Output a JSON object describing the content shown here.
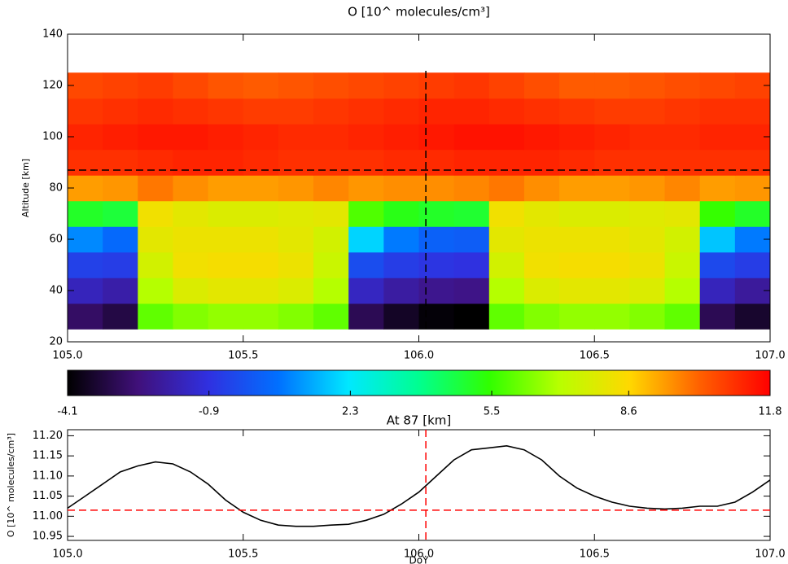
{
  "chart_data": [
    {
      "type": "heatmap",
      "title": "O [10^ molecules/cm³]",
      "ylabel": "Altitude [km]",
      "x": [
        105.05,
        105.15,
        105.25,
        105.35,
        105.45,
        105.55,
        105.65,
        105.75,
        105.85,
        105.95,
        106.05,
        106.15,
        106.25,
        106.35,
        106.45,
        106.55,
        106.65,
        106.75,
        106.85,
        106.95
      ],
      "y": [
        30,
        40,
        50,
        60,
        70,
        80,
        90,
        100,
        110,
        120
      ],
      "z": [
        [
          -2.8,
          -3.2,
          6.0,
          6.4,
          6.6,
          6.6,
          6.4,
          6.0,
          -3.0,
          -3.6,
          -4.0,
          -4.1,
          6.0,
          6.4,
          6.6,
          6.6,
          6.4,
          6.0,
          -3.0,
          -3.5
        ],
        [
          -1.5,
          -1.8,
          7.0,
          7.8,
          8.0,
          8.0,
          7.8,
          7.0,
          -1.4,
          -1.9,
          -2.2,
          -2.3,
          7.0,
          7.8,
          8.0,
          8.0,
          7.8,
          7.0,
          -1.5,
          -2.0
        ],
        [
          -0.5,
          -0.6,
          7.6,
          8.3,
          8.4,
          8.4,
          8.2,
          7.4,
          -0.2,
          -0.6,
          -0.8,
          -0.9,
          7.6,
          8.3,
          8.4,
          8.4,
          8.2,
          7.4,
          -0.3,
          -0.6
        ],
        [
          1.0,
          0.5,
          8.0,
          8.2,
          8.2,
          8.2,
          8.0,
          7.6,
          2.0,
          0.8,
          0.3,
          0.2,
          8.0,
          8.2,
          8.2,
          8.2,
          8.0,
          7.6,
          1.8,
          0.8
        ],
        [
          5.0,
          4.8,
          8.3,
          8.0,
          7.8,
          7.8,
          7.9,
          8.0,
          5.8,
          5.2,
          5.0,
          4.9,
          8.3,
          8.0,
          7.8,
          7.8,
          7.9,
          8.0,
          5.5,
          5.0
        ],
        [
          9.4,
          9.5,
          9.9,
          9.6,
          9.4,
          9.4,
          9.5,
          9.7,
          9.5,
          9.6,
          9.6,
          9.7,
          9.9,
          9.6,
          9.4,
          9.4,
          9.5,
          9.7,
          9.4,
          9.5
        ],
        [
          11.0,
          11.0,
          11.1,
          11.2,
          11.2,
          11.1,
          11.0,
          11.0,
          11.0,
          11.1,
          11.1,
          11.2,
          11.2,
          11.2,
          11.1,
          11.0,
          11.0,
          11.0,
          11.0,
          11.0
        ],
        [
          11.2,
          11.3,
          11.4,
          11.4,
          11.3,
          11.2,
          11.1,
          11.1,
          11.2,
          11.3,
          11.4,
          11.5,
          11.5,
          11.4,
          11.3,
          11.2,
          11.1,
          11.1,
          11.2,
          11.2
        ],
        [
          10.9,
          11.0,
          11.1,
          11.0,
          10.9,
          10.8,
          10.8,
          10.9,
          11.0,
          11.1,
          11.2,
          11.2,
          11.1,
          11.0,
          10.9,
          10.8,
          10.8,
          10.9,
          11.0,
          11.0
        ],
        [
          10.6,
          10.7,
          10.8,
          10.6,
          10.4,
          10.3,
          10.4,
          10.5,
          10.6,
          10.7,
          10.8,
          10.9,
          10.7,
          10.5,
          10.3,
          10.3,
          10.4,
          10.5,
          10.6,
          10.7
        ]
      ],
      "xlim": [
        105,
        107
      ],
      "ylim": [
        20,
        140
      ],
      "xticks": [
        {
          "value": 105,
          "label": "105.0"
        },
        105.5,
        {
          "value": 106,
          "label": "106.0"
        },
        106.5,
        {
          "value": 107,
          "label": "107.0"
        }
      ],
      "yticks": [
        20,
        40,
        60,
        80,
        100,
        120,
        140
      ],
      "colorbar": {
        "lim": [
          -4.1,
          11.8
        ],
        "ticks": [
          -4.1,
          -0.9,
          2.3,
          5.5,
          8.6,
          11.8
        ],
        "colors": [
          "#000000",
          "#40107a",
          "#3030e0",
          "#0070ff",
          "#00e8ff",
          "#00ff90",
          "#30ff00",
          "#b8ff00",
          "#ffd800",
          "#ff6000",
          "#ff0000"
        ]
      },
      "crosshair": {
        "x": 106.02,
        "y": 87,
        "color": "#000000"
      }
    },
    {
      "type": "line",
      "title": "At 87 [km]",
      "xlabel": "DoY",
      "ylabel": "O [10^ molecules/cm³]",
      "x": [
        105.0,
        105.05,
        105.1,
        105.15,
        105.2,
        105.25,
        105.3,
        105.35,
        105.4,
        105.45,
        105.5,
        105.55,
        105.6,
        105.65,
        105.7,
        105.75,
        105.8,
        105.85,
        105.9,
        105.95,
        106.0,
        106.05,
        106.1,
        106.15,
        106.2,
        106.25,
        106.3,
        106.35,
        106.4,
        106.45,
        106.5,
        106.55,
        106.6,
        106.65,
        106.7,
        106.75,
        106.8,
        106.85,
        106.9,
        106.95,
        107.0
      ],
      "series": [
        {
          "color": "#000000",
          "values": [
            11.02,
            11.05,
            11.08,
            11.11,
            11.125,
            11.135,
            11.13,
            11.11,
            11.08,
            11.04,
            11.01,
            10.99,
            10.978,
            10.975,
            10.975,
            10.978,
            10.98,
            10.99,
            11.005,
            11.03,
            11.06,
            11.1,
            11.14,
            11.165,
            11.17,
            11.175,
            11.165,
            11.14,
            11.1,
            11.07,
            11.05,
            11.035,
            11.025,
            11.02,
            11.018,
            11.02,
            11.025,
            11.025,
            11.035,
            11.06,
            11.09
          ]
        }
      ],
      "xlim": [
        105,
        107
      ],
      "ylim": [
        10.94,
        11.215
      ],
      "xticks": [
        {
          "value": 105,
          "label": "105.0"
        },
        105.5,
        {
          "value": 106,
          "label": "106.0"
        },
        106.5,
        {
          "value": 107,
          "label": "107.0"
        }
      ],
      "yticks": [
        10.95,
        {
          "value": 11,
          "label": "11.00"
        },
        11.05,
        {
          "value": 11.1,
          "label": "11.10"
        },
        11.15,
        {
          "value": 11.2,
          "label": "11.20"
        }
      ],
      "crosshair": {
        "x": 106.02,
        "y": 11.015,
        "color": "#ff0000"
      }
    }
  ]
}
